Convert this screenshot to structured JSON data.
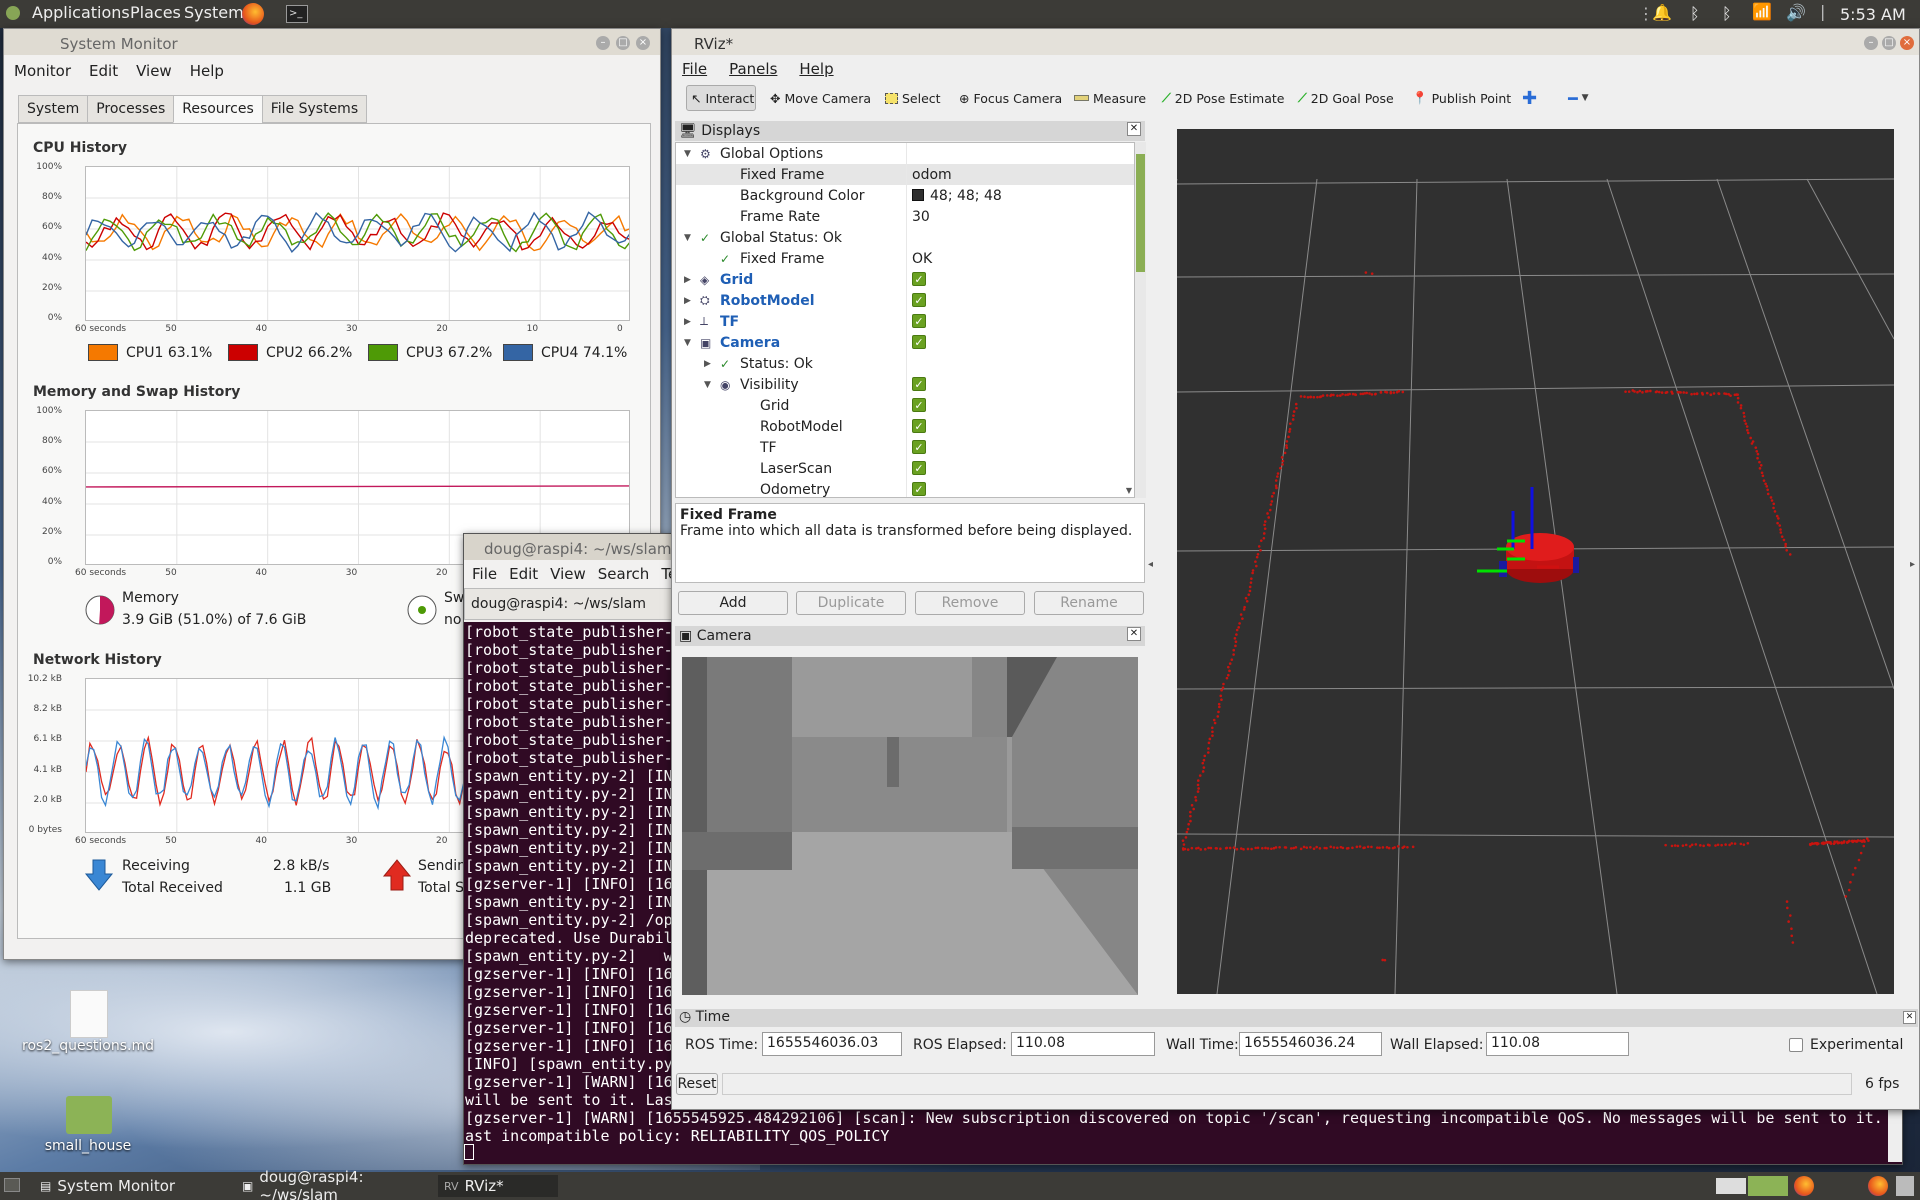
{
  "top_panel": {
    "applications": "Applications",
    "places": "Places",
    "system": "System",
    "clock": "5:53 AM"
  },
  "sysmon": {
    "title": "System Monitor",
    "menu": [
      "Monitor",
      "Edit",
      "View",
      "Help"
    ],
    "tabs": [
      "System",
      "Processes",
      "Resources",
      "File Systems"
    ],
    "selected_tab": "Resources",
    "cpu": {
      "heading": "CPU History",
      "y_ticks": [
        "100%",
        "80%",
        "60%",
        "40%",
        "20%",
        "0%"
      ],
      "x_ticks": [
        "60 seconds",
        "50",
        "40",
        "30",
        "20",
        "10",
        "0"
      ],
      "cores": [
        {
          "label": "CPU1 63.1%",
          "color": "#f57900"
        },
        {
          "label": "CPU2 66.2%",
          "color": "#cc0000"
        },
        {
          "label": "CPU3 67.2%",
          "color": "#4e9a06"
        },
        {
          "label": "CPU4 74.1%",
          "color": "#3465a4"
        }
      ]
    },
    "mem": {
      "heading": "Memory and Swap History",
      "y_ticks": [
        "100%",
        "80%",
        "60%",
        "40%",
        "20%",
        "0%"
      ],
      "x_ticks": [
        "60 seconds",
        "50",
        "40",
        "30",
        "20"
      ],
      "memory_label": "Memory",
      "memory_value": "3.9 GiB (51.0%) of 7.6 GiB",
      "memory_percent": 51.0,
      "swap_label": "Sw",
      "swap_value": "no"
    },
    "net": {
      "heading": "Network History",
      "y_ticks": [
        "10.2 kB",
        "8.2 kB",
        "6.1 kB",
        "4.1 kB",
        "2.0 kB",
        "0 bytes"
      ],
      "x_ticks": [
        "60 seconds",
        "50",
        "40",
        "30",
        "20"
      ],
      "receiving_label": "Receiving",
      "receiving_value": "2.8 kB/s",
      "total_received_label": "Total Received",
      "total_received_value": "1.1 GB",
      "sending_label": "Sendin",
      "total_sent_label": "Total Se"
    }
  },
  "terminal": {
    "title": "doug@raspi4: ~/ws/slam",
    "menu": [
      "File",
      "Edit",
      "View",
      "Search",
      "Term"
    ],
    "tab_label": "doug@raspi4: ~/ws/slam",
    "lines": [
      "[robot_state_publisher-",
      "[robot_state_publisher-",
      "[robot_state_publisher-",
      "[robot_state_publisher-",
      "[robot_state_publisher-",
      "[robot_state_publisher-",
      "[robot_state_publisher-",
      "[robot_state_publisher-",
      "[spawn_entity.py-2] [IN",
      "[spawn_entity.py-2] [IN",
      "[spawn_entity.py-2] [IN",
      "[spawn_entity.py-2] [IN",
      "[spawn_entity.py-2] [IN",
      "[spawn_entity.py-2] [IN",
      "[gzserver-1] [INFO] [16",
      "[spawn_entity.py-2] [IN",
      "[spawn_entity.py-2] /op",
      "deprecated. Use Durabil",
      "[spawn_entity.py-2]   w",
      "[gzserver-1] [INFO] [16",
      "[gzserver-1] [INFO] [16",
      "[gzserver-1] [INFO] [16",
      "[gzserver-1] [INFO] [16",
      "[gzserver-1] [INFO] [16",
      "[INFO] [spawn_entity.py",
      "[gzserver-1] [WARN] [16",
      "will be sent to it. Last incompatible policy: RELIABILITY_QOS_POLICY",
      "[gzserver-1] [WARN] [1655545925.484292106] [scan]: New subscription discovered on topic '/scan', requesting incompatible QoS. No messages will be sent to it. L",
      "ast incompatible policy: RELIABILITY_QOS_POLICY"
    ]
  },
  "rviz": {
    "title": "RViz*",
    "menu": [
      "File",
      "Panels",
      "Help"
    ],
    "toolbar": [
      "Interact",
      "Move Camera",
      "Select",
      "Focus Camera",
      "Measure",
      "2D Pose Estimate",
      "2D Goal Pose",
      "Publish Point"
    ],
    "displays_title": "Displays",
    "tree": [
      {
        "label": "Global Options",
        "value": ""
      },
      {
        "label": "Fixed Frame",
        "value": "odom"
      },
      {
        "label": "Background Color",
        "value": "48; 48; 48"
      },
      {
        "label": "Frame Rate",
        "value": "30"
      },
      {
        "label": "Global Status: Ok",
        "value": ""
      },
      {
        "label": "Fixed Frame",
        "value": "OK"
      },
      {
        "label": "Grid",
        "value": ""
      },
      {
        "label": "RobotModel",
        "value": ""
      },
      {
        "label": "TF",
        "value": ""
      },
      {
        "label": "Camera",
        "value": ""
      },
      {
        "label": "Status: Ok",
        "value": ""
      },
      {
        "label": "Visibility",
        "value": ""
      },
      {
        "label": "Grid",
        "value": ""
      },
      {
        "label": "RobotModel",
        "value": ""
      },
      {
        "label": "TF",
        "value": ""
      },
      {
        "label": "LaserScan",
        "value": ""
      },
      {
        "label": "Odometry",
        "value": ""
      }
    ],
    "desc_title": "Fixed Frame",
    "desc_text": "Frame into which all data is transformed before being displayed.",
    "buttons": [
      "Add",
      "Duplicate",
      "Remove",
      "Rename"
    ],
    "camera_title": "Camera",
    "time_title": "Time",
    "ros_time_label": "ROS Time:",
    "ros_time": "1655546036.03",
    "ros_elapsed_label": "ROS Elapsed:",
    "ros_elapsed": "110.08",
    "wall_time_label": "Wall Time:",
    "wall_time": "1655546036.24",
    "wall_elapsed_label": "Wall Elapsed:",
    "wall_elapsed": "110.08",
    "experimental_label": "Experimental",
    "reset_label": "Reset",
    "fps": "6 fps",
    "background_color": "#303030"
  },
  "desktop_icons": [
    {
      "label": "ros2_questions.md"
    },
    {
      "label": "small_house"
    }
  ],
  "taskbar": [
    {
      "label": "System Monitor"
    },
    {
      "label": "doug@raspi4: ~/ws/slam"
    },
    {
      "label": "RViz*"
    }
  ]
}
